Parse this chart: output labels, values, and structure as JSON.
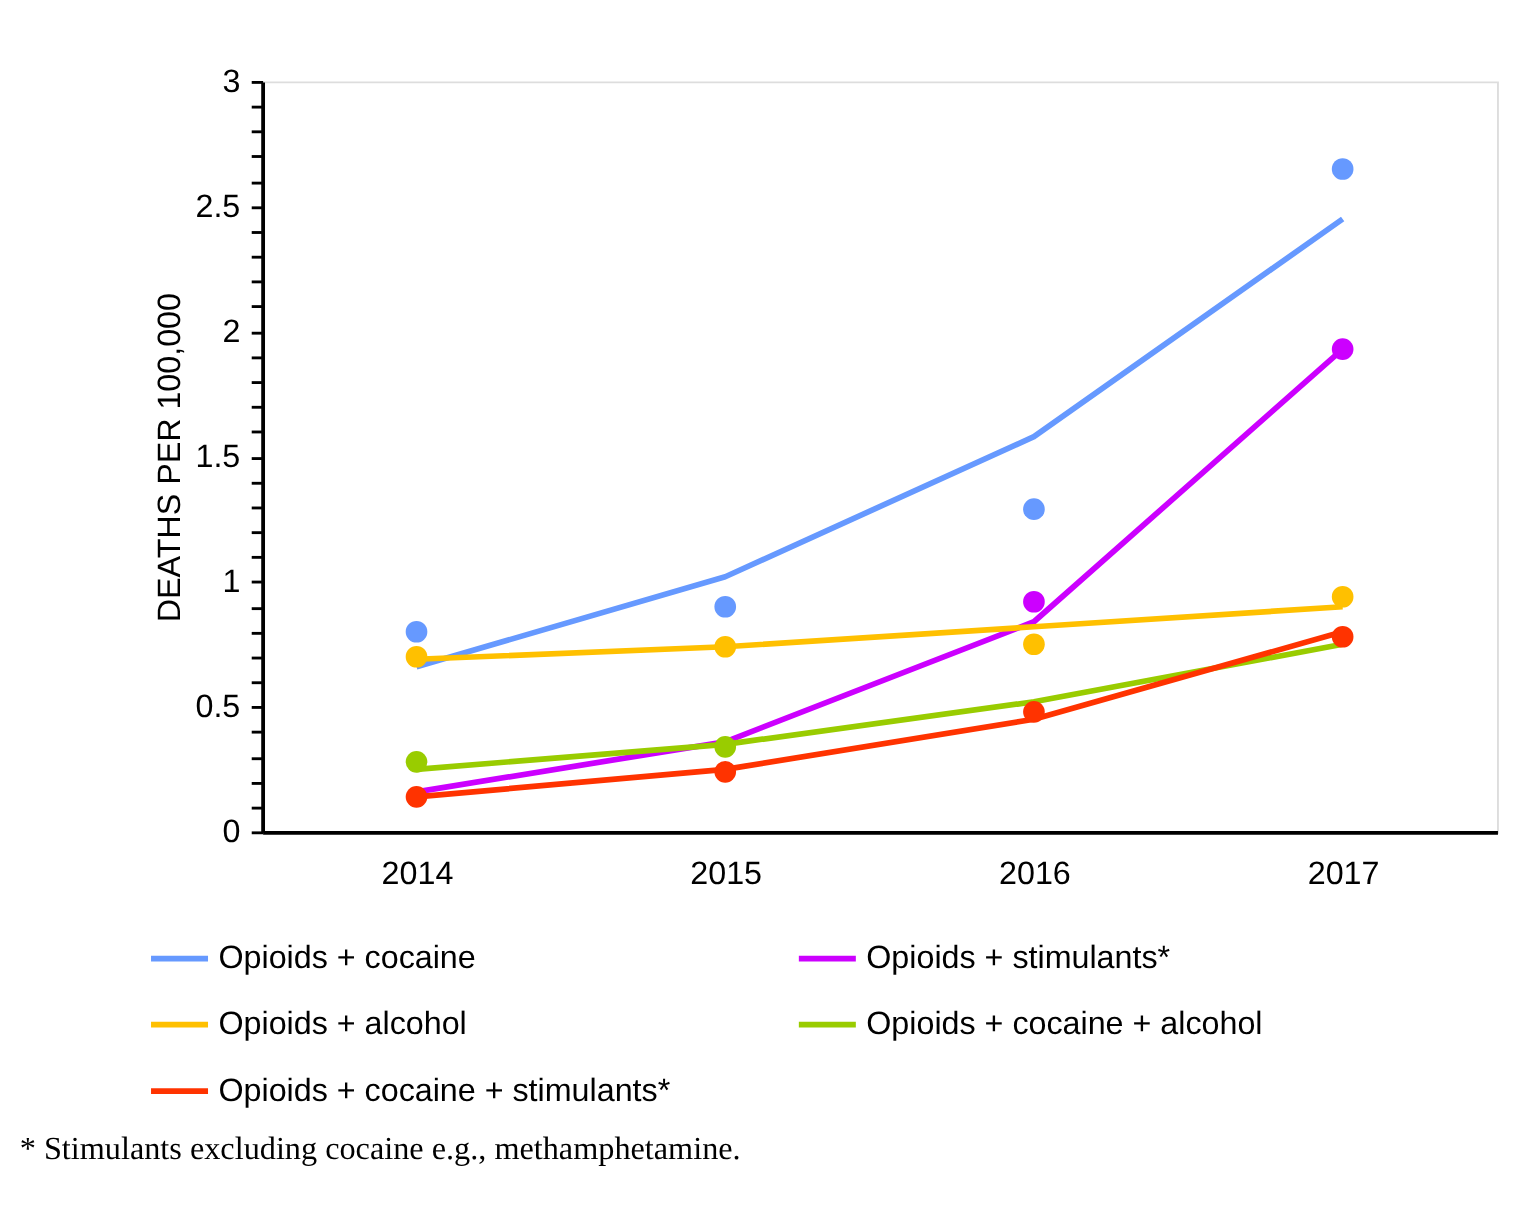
{
  "chart_data": {
    "type": "line",
    "ylabel": "DEATHS PER 100,000",
    "categories": [
      "2014",
      "2015",
      "2016",
      "2017"
    ],
    "series": [
      {
        "name": "Opioids + cocaine",
        "color": "#6699ff",
        "values": [
          0.66,
          1.02,
          1.58,
          2.45
        ]
      },
      {
        "name": "Opioids + stimulants*",
        "color": "#cc00ff",
        "values": [
          0.16,
          0.36,
          0.84,
          1.93
        ]
      },
      {
        "name": "Opioids + alcohol",
        "color": "#ffc000",
        "values": [
          0.69,
          0.74,
          0.82,
          0.9
        ]
      },
      {
        "name": "Opioids + cocaine + alcohol",
        "color": "#99cc00",
        "values": [
          0.25,
          0.35,
          0.52,
          0.75
        ]
      },
      {
        "name": "Opioids + cocaine + stimulants*",
        "color": "#ff3300",
        "values": [
          0.14,
          0.25,
          0.45,
          0.8
        ]
      },
      {
        "type": "scatter",
        "marker": "circle",
        "color": "#6699ff",
        "values": [
          0.8,
          0.9,
          1.29,
          2.65
        ]
      },
      {
        "type": "scatter",
        "marker": "circle",
        "color": "#cc00ff",
        "values": [
          null,
          null,
          0.92,
          1.93
        ]
      },
      {
        "type": "scatter",
        "marker": "circle",
        "color": "#ffc000",
        "values": [
          0.7,
          0.74,
          0.75,
          0.94
        ]
      },
      {
        "type": "scatter",
        "marker": "circle",
        "color": "#99cc00",
        "values": [
          0.28,
          0.34,
          null,
          null
        ]
      },
      {
        "type": "scatter",
        "marker": "circle",
        "color": "#ff3300",
        "values": [
          0.14,
          0.24,
          0.48,
          0.78
        ]
      }
    ],
    "ylim": [
      0,
      3
    ],
    "yticks": [
      0,
      {
        "value": 0.1,
        "label": null
      },
      {
        "value": 0.2,
        "label": null
      },
      {
        "value": 0.3,
        "label": null
      },
      {
        "value": 0.4,
        "label": null
      },
      0.5,
      {
        "value": 0.6,
        "label": null
      },
      {
        "value": 0.7,
        "label": null
      },
      {
        "value": 0.8,
        "label": null
      },
      {
        "value": 0.9,
        "label": null
      },
      1,
      {
        "value": 1.1,
        "label": null
      },
      {
        "value": 1.2,
        "label": null
      },
      {
        "value": 1.3,
        "label": null
      },
      {
        "value": 1.4,
        "label": null
      },
      1.5,
      {
        "value": 1.6,
        "label": null
      },
      {
        "value": 1.7,
        "label": null
      },
      {
        "value": 1.8,
        "label": null
      },
      {
        "value": 1.9,
        "label": null
      },
      2,
      {
        "value": 2.1,
        "label": null
      },
      {
        "value": 2.2,
        "label": null
      },
      {
        "value": 2.3,
        "label": null
      },
      {
        "value": 2.4,
        "label": null
      },
      2.5,
      {
        "value": 2.6,
        "label": null
      },
      {
        "value": 2.7,
        "label": null
      },
      {
        "value": 2.8,
        "label": null
      },
      {
        "value": 2.9,
        "label": null
      },
      3
    ],
    "grid": false,
    "legend": "bottom",
    "line_style": "solid",
    "annotations": [
      "* Stimulants excluding cocaine e.g., methamphetamine."
    ]
  }
}
